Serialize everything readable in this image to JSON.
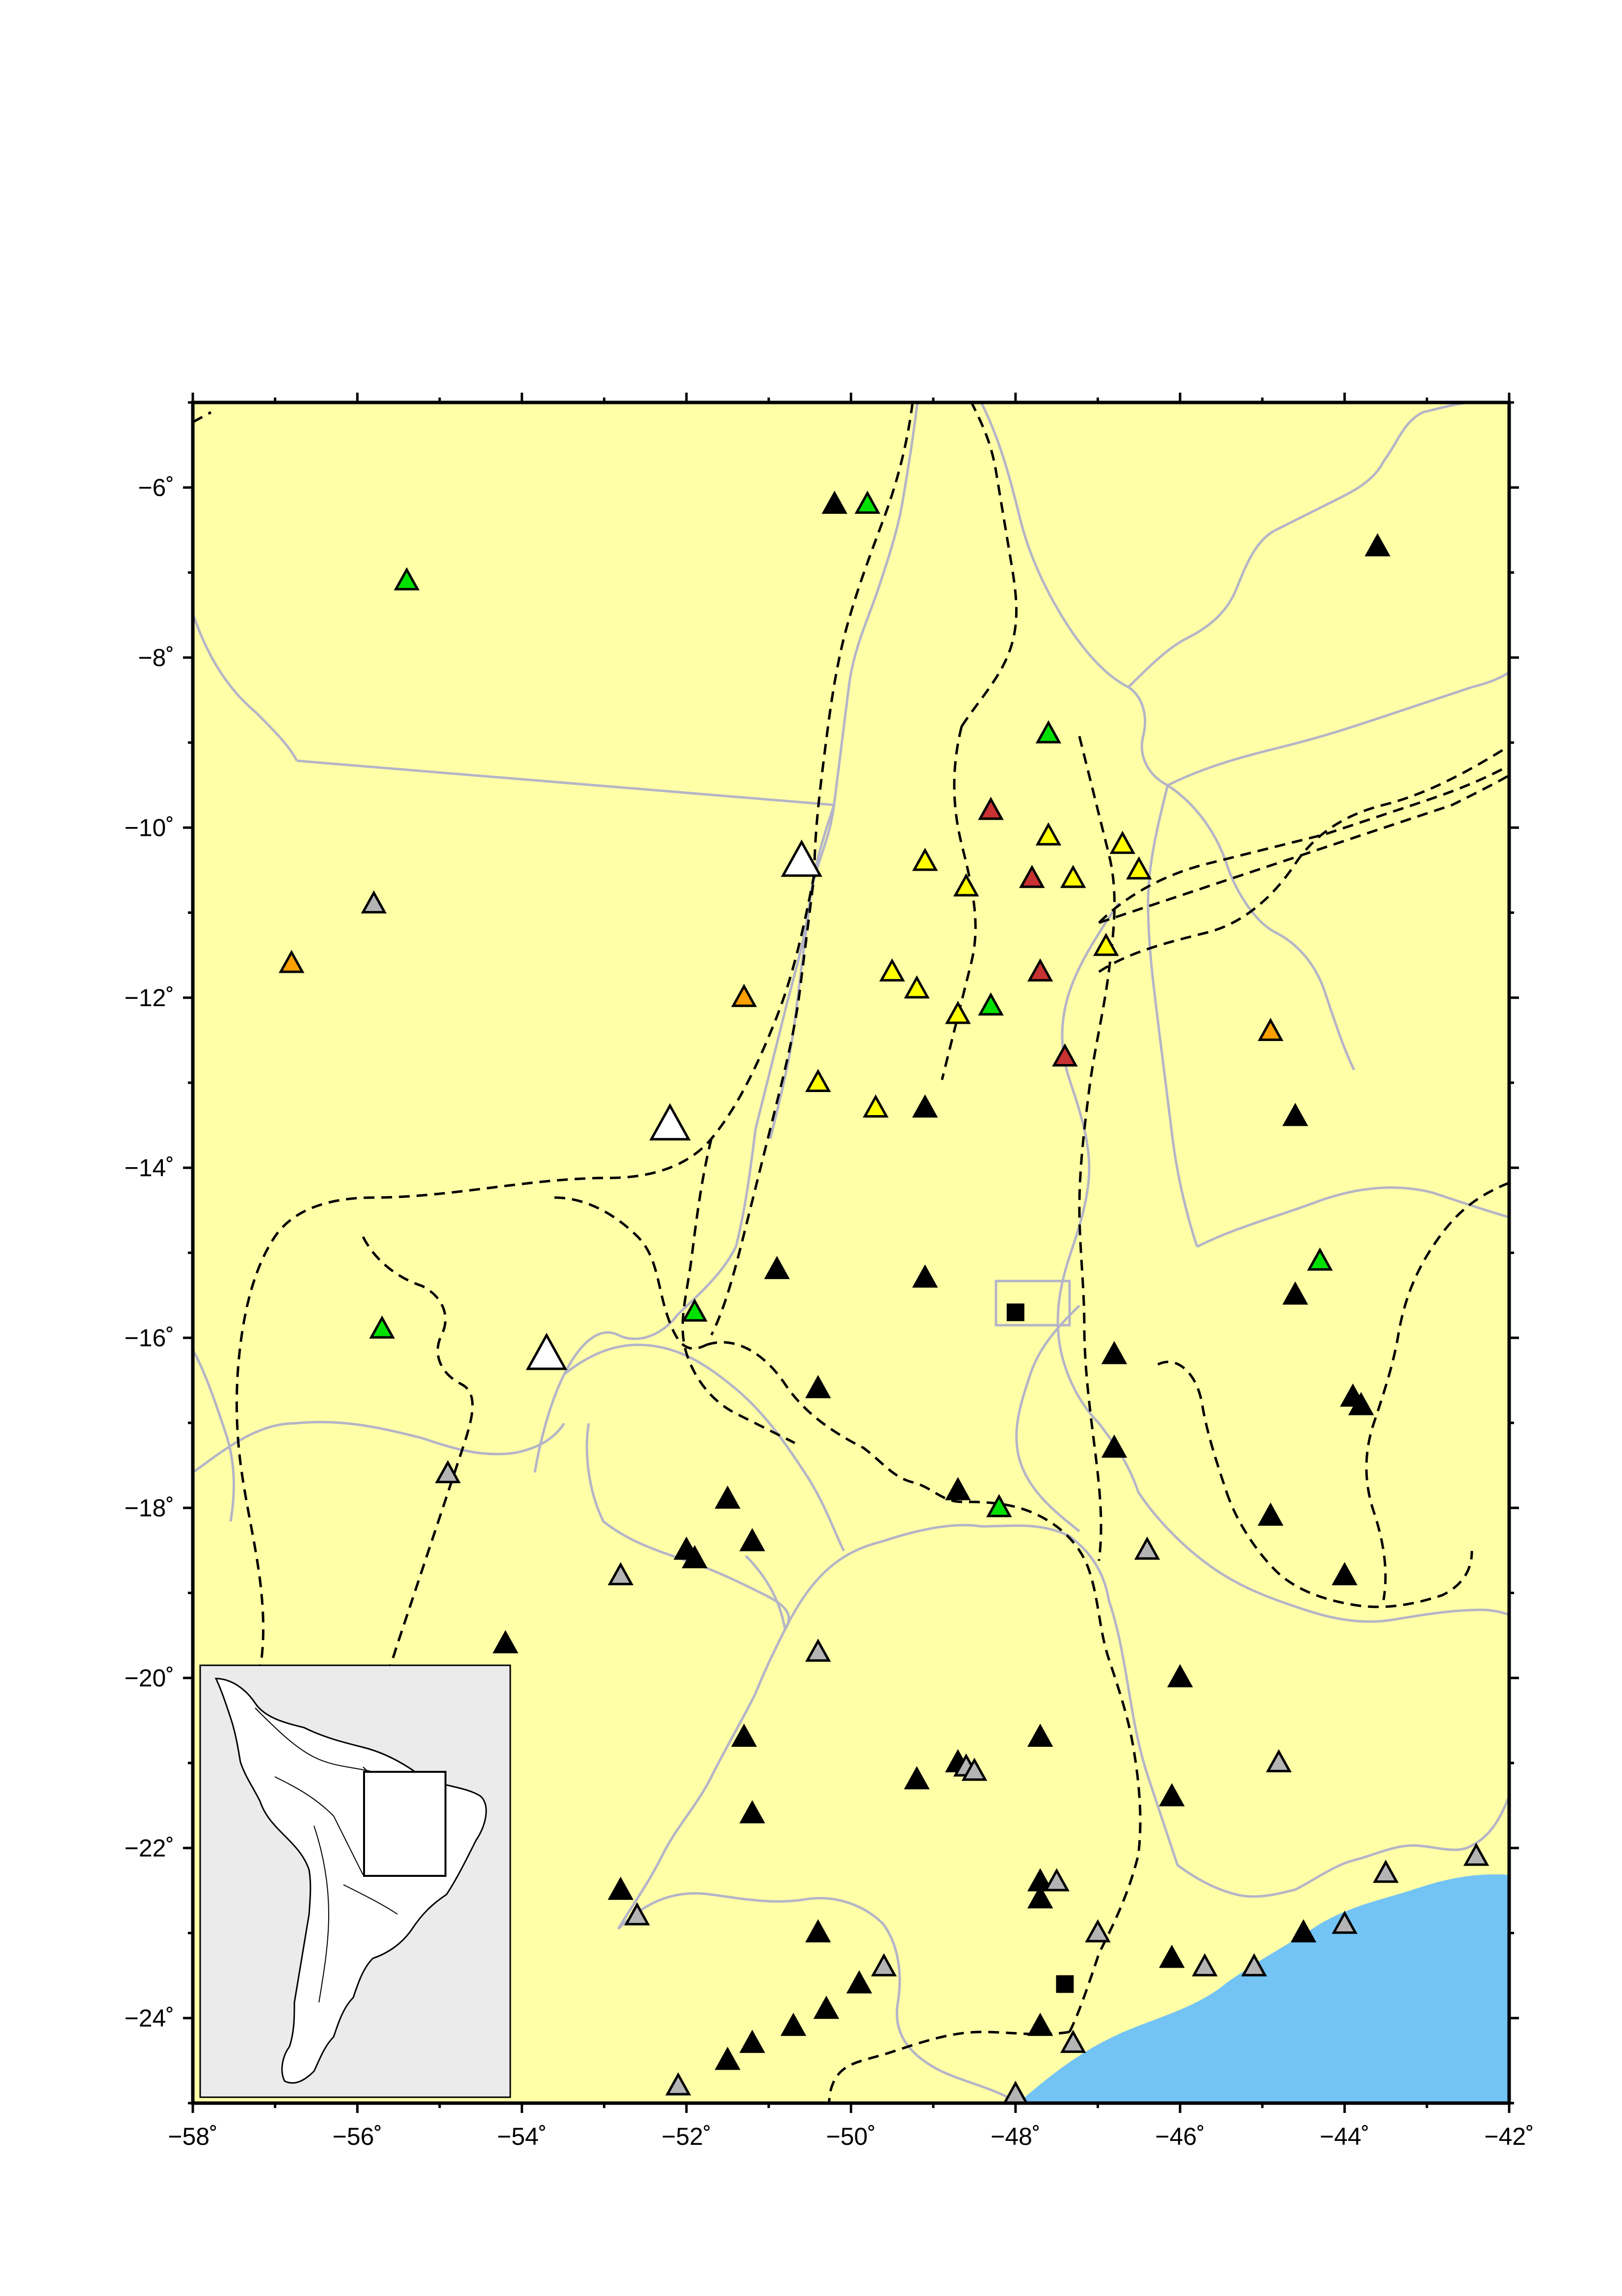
{
  "map": {
    "x_tick_labels": [
      "−58˚",
      "−56˚",
      "−54˚",
      "−52˚",
      "−50˚",
      "−48˚",
      "−46˚",
      "−44˚",
      "−42˚"
    ],
    "y_tick_labels": [
      "−6˚",
      "−8˚",
      "−10˚",
      "−12˚",
      "−14˚",
      "−16˚",
      "−18˚",
      "−20˚",
      "−22˚",
      "−24˚"
    ],
    "lon_range": [
      -58,
      -42
    ],
    "lat_range": [
      -25,
      -5
    ],
    "colors": {
      "land": "#ffffa8",
      "ocean": "#73c3f5",
      "border": "#b4b4c8",
      "province_boundary": "#000000",
      "inset_bg": "#ebebeb",
      "station_black": "#000000",
      "station_green": "#00e000",
      "station_yellow": "#ffff00",
      "station_red": "#c83232",
      "station_orange": "#ffa000",
      "station_gray": "#b4b4b4",
      "station_white": "#ffffff"
    },
    "stations": [
      {
        "lon": -50.2,
        "lat": -6.2,
        "color": "black"
      },
      {
        "lon": -49.8,
        "lat": -6.2,
        "color": "green"
      },
      {
        "lon": -43.6,
        "lat": -6.7,
        "color": "black"
      },
      {
        "lon": -55.4,
        "lat": -7.1,
        "color": "green"
      },
      {
        "lon": -47.6,
        "lat": -8.9,
        "color": "green"
      },
      {
        "lon": -48.3,
        "lat": -9.8,
        "color": "red"
      },
      {
        "lon": -47.6,
        "lat": -10.1,
        "color": "yellow"
      },
      {
        "lon": -46.7,
        "lat": -10.2,
        "color": "yellow"
      },
      {
        "lon": -49.1,
        "lat": -10.4,
        "color": "yellow"
      },
      {
        "lon": -46.5,
        "lat": -10.5,
        "color": "yellow"
      },
      {
        "lon": -47.8,
        "lat": -10.6,
        "color": "red"
      },
      {
        "lon": -47.3,
        "lat": -10.6,
        "color": "yellow"
      },
      {
        "lon": -48.6,
        "lat": -10.7,
        "color": "yellow"
      },
      {
        "lon": -50.6,
        "lat": -10.4,
        "color": "white",
        "big": true
      },
      {
        "lon": -55.8,
        "lat": -10.9,
        "color": "gray"
      },
      {
        "lon": -46.9,
        "lat": -11.4,
        "color": "yellow"
      },
      {
        "lon": -56.8,
        "lat": -11.6,
        "color": "orange"
      },
      {
        "lon": -49.5,
        "lat": -11.7,
        "color": "yellow"
      },
      {
        "lon": -47.7,
        "lat": -11.7,
        "color": "red"
      },
      {
        "lon": -49.2,
        "lat": -11.9,
        "color": "yellow"
      },
      {
        "lon": -51.3,
        "lat": -12.0,
        "color": "orange"
      },
      {
        "lon": -48.3,
        "lat": -12.1,
        "color": "green"
      },
      {
        "lon": -48.7,
        "lat": -12.2,
        "color": "yellow"
      },
      {
        "lon": -44.9,
        "lat": -12.4,
        "color": "orange"
      },
      {
        "lon": -47.4,
        "lat": -12.7,
        "color": "red"
      },
      {
        "lon": -50.4,
        "lat": -13.0,
        "color": "yellow"
      },
      {
        "lon": -49.7,
        "lat": -13.3,
        "color": "yellow"
      },
      {
        "lon": -49.1,
        "lat": -13.3,
        "color": "black"
      },
      {
        "lon": -44.6,
        "lat": -13.4,
        "color": "black"
      },
      {
        "lon": -52.2,
        "lat": -13.5,
        "color": "white",
        "big": true
      },
      {
        "lon": -44.3,
        "lat": -15.1,
        "color": "green"
      },
      {
        "lon": -50.9,
        "lat": -15.2,
        "color": "black"
      },
      {
        "lon": -49.1,
        "lat": -15.3,
        "color": "black"
      },
      {
        "lon": -44.6,
        "lat": -15.5,
        "color": "black"
      },
      {
        "lon": -51.9,
        "lat": -15.7,
        "color": "green"
      },
      {
        "lon": -55.7,
        "lat": -15.9,
        "color": "green"
      },
      {
        "lon": -53.7,
        "lat": -16.2,
        "color": "white",
        "big": true
      },
      {
        "lon": -46.8,
        "lat": -16.2,
        "color": "black"
      },
      {
        "lon": -50.4,
        "lat": -16.6,
        "color": "black"
      },
      {
        "lon": -43.9,
        "lat": -16.7,
        "color": "black"
      },
      {
        "lon": -43.8,
        "lat": -16.8,
        "color": "black"
      },
      {
        "lon": -46.8,
        "lat": -17.3,
        "color": "black"
      },
      {
        "lon": -54.9,
        "lat": -17.6,
        "color": "gray"
      },
      {
        "lon": -48.7,
        "lat": -17.8,
        "color": "black"
      },
      {
        "lon": -51.5,
        "lat": -17.9,
        "color": "black"
      },
      {
        "lon": -48.2,
        "lat": -18.0,
        "color": "green"
      },
      {
        "lon": -44.9,
        "lat": -18.1,
        "color": "black"
      },
      {
        "lon": -51.2,
        "lat": -18.4,
        "color": "black"
      },
      {
        "lon": -52.0,
        "lat": -18.5,
        "color": "black"
      },
      {
        "lon": -51.9,
        "lat": -18.6,
        "color": "black"
      },
      {
        "lon": -46.4,
        "lat": -18.5,
        "color": "gray"
      },
      {
        "lon": -52.8,
        "lat": -18.8,
        "color": "gray"
      },
      {
        "lon": -44.0,
        "lat": -18.8,
        "color": "black"
      },
      {
        "lon": -54.2,
        "lat": -19.6,
        "color": "black"
      },
      {
        "lon": -50.4,
        "lat": -19.7,
        "color": "gray"
      },
      {
        "lon": -46.0,
        "lat": -20.0,
        "color": "black"
      },
      {
        "lon": -51.3,
        "lat": -20.7,
        "color": "black"
      },
      {
        "lon": -47.7,
        "lat": -20.7,
        "color": "black"
      },
      {
        "lon": -48.7,
        "lat": -21.0,
        "color": "black"
      },
      {
        "lon": -48.6,
        "lat": -21.05,
        "color": "gray"
      },
      {
        "lon": -48.5,
        "lat": -21.1,
        "color": "gray"
      },
      {
        "lon": -44.8,
        "lat": -21.0,
        "color": "gray"
      },
      {
        "lon": -49.2,
        "lat": -21.2,
        "color": "black"
      },
      {
        "lon": -46.1,
        "lat": -21.4,
        "color": "black"
      },
      {
        "lon": -51.2,
        "lat": -21.6,
        "color": "black"
      },
      {
        "lon": -42.4,
        "lat": -22.1,
        "color": "gray"
      },
      {
        "lon": -43.5,
        "lat": -22.3,
        "color": "gray"
      },
      {
        "lon": -47.7,
        "lat": -22.4,
        "color": "black"
      },
      {
        "lon": -47.5,
        "lat": -22.4,
        "color": "gray"
      },
      {
        "lon": -52.8,
        "lat": -22.5,
        "color": "black"
      },
      {
        "lon": -47.7,
        "lat": -22.6,
        "color": "black"
      },
      {
        "lon": -52.6,
        "lat": -22.8,
        "color": "gray"
      },
      {
        "lon": -50.4,
        "lat": -23.0,
        "color": "black"
      },
      {
        "lon": -47.0,
        "lat": -23.0,
        "color": "gray"
      },
      {
        "lon": -44.5,
        "lat": -23.0,
        "color": "black"
      },
      {
        "lon": -44.0,
        "lat": -22.9,
        "color": "gray"
      },
      {
        "lon": -46.1,
        "lat": -23.3,
        "color": "black"
      },
      {
        "lon": -45.7,
        "lat": -23.4,
        "color": "gray"
      },
      {
        "lon": -45.1,
        "lat": -23.4,
        "color": "gray"
      },
      {
        "lon": -49.6,
        "lat": -23.4,
        "color": "gray"
      },
      {
        "lon": -49.9,
        "lat": -23.6,
        "color": "black"
      },
      {
        "lon": -50.3,
        "lat": -23.9,
        "color": "black"
      },
      {
        "lon": -50.7,
        "lat": -24.1,
        "color": "black"
      },
      {
        "lon": -47.7,
        "lat": -24.1,
        "color": "black"
      },
      {
        "lon": -51.2,
        "lat": -24.3,
        "color": "black"
      },
      {
        "lon": -47.3,
        "lat": -24.3,
        "color": "gray"
      },
      {
        "lon": -51.5,
        "lat": -24.5,
        "color": "black"
      },
      {
        "lon": -52.1,
        "lat": -24.8,
        "color": "gray"
      },
      {
        "lon": -48.0,
        "lat": -24.9,
        "color": "gray"
      }
    ],
    "squares": [
      {
        "lon": -48.0,
        "lat": -15.7
      },
      {
        "lon": -47.4,
        "lat": -23.6
      }
    ]
  }
}
